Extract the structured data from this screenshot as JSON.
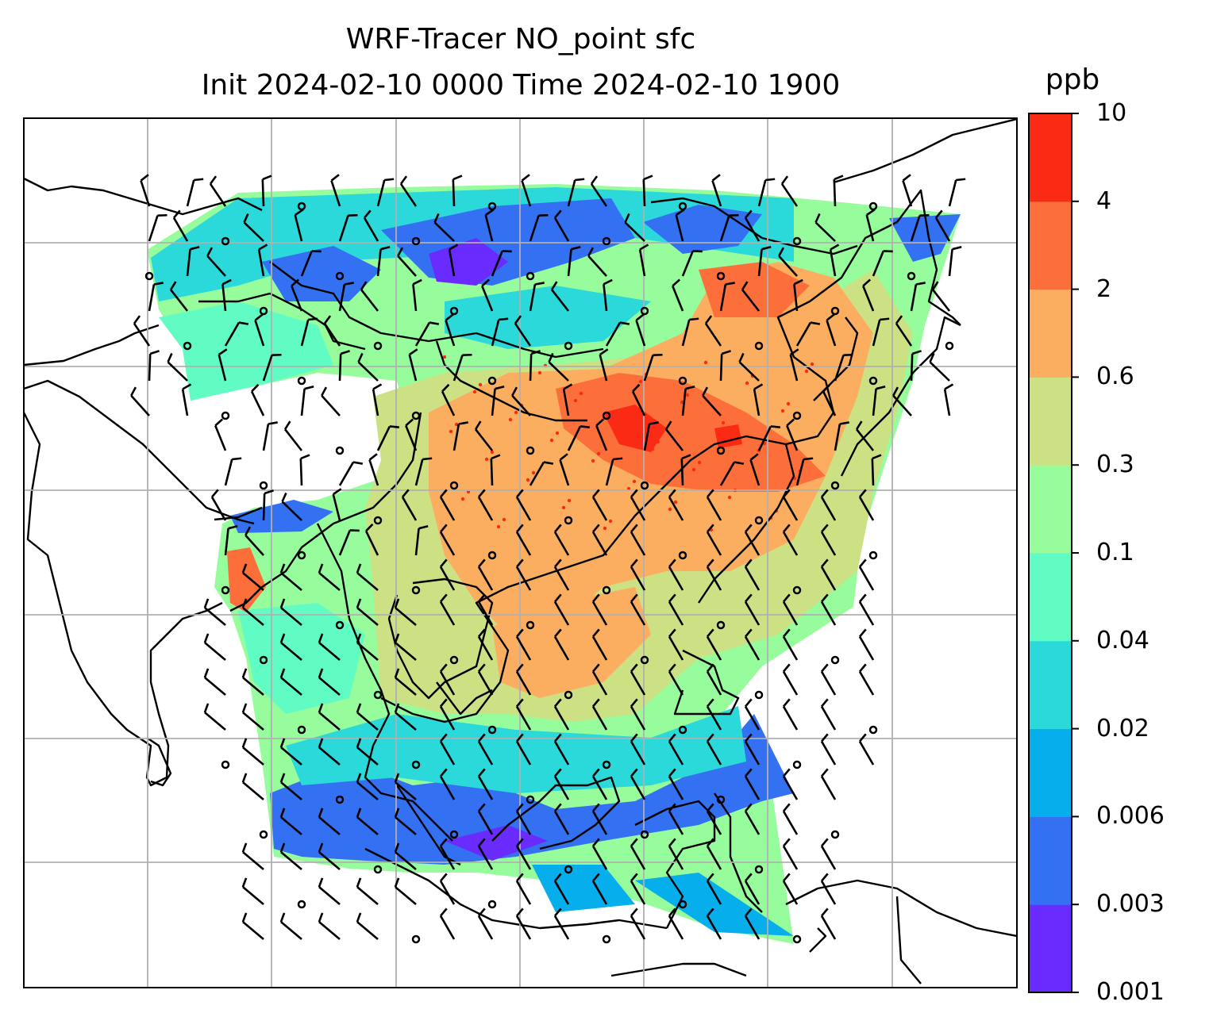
{
  "chart_data": {
    "type": "heatmap",
    "title": "WRF-Tracer NO_point sfc",
    "subtitle": "Init 2024-02-10 0000 Time 2024-02-10 1900",
    "colorbar": {
      "label": "ppb",
      "ticks": [
        "0.001",
        "0.003",
        "0.006",
        "0.02",
        "0.04",
        "0.1",
        "0.3",
        "0.6",
        "2",
        "4",
        "10"
      ],
      "colors": [
        "#6a2bff",
        "#3471f2",
        "#07aeec",
        "#2bd9da",
        "#61fcc3",
        "#97fc9b",
        "#cbe184",
        "#fcae60",
        "#fd6f3a",
        "#fb2a14"
      ]
    },
    "grid": true,
    "overlay": [
      "coastlines",
      "country borders",
      "wind barbs"
    ],
    "colors": {
      "gridline": "#b0b0b0",
      "frame": "#000000"
    }
  }
}
